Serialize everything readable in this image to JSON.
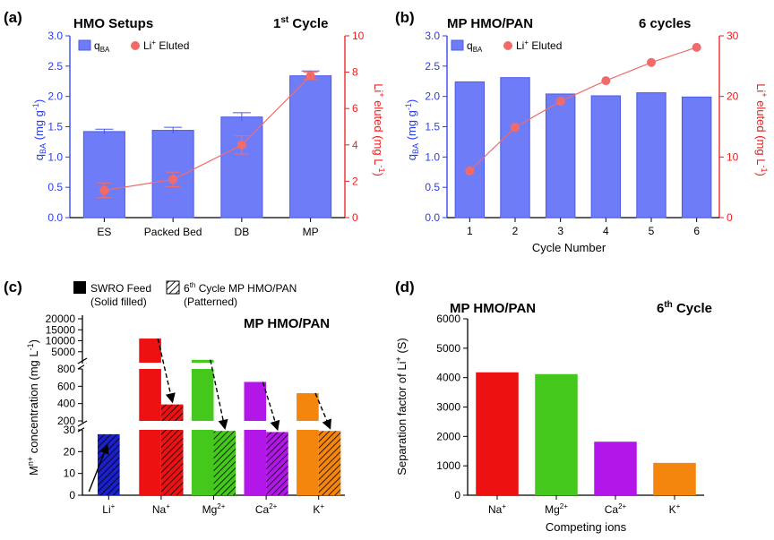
{
  "colors": {
    "bar_blue": "#6f7cf7",
    "bar_blue_edge": "#4b5be8",
    "li_red": "#f26b6b",
    "axis_blue": "#2a3cf0",
    "axis_red": "#ec1c1c",
    "na": "#ee1111",
    "mg": "#44c81c",
    "ca": "#b316e8",
    "k": "#f4860d",
    "li": "#1b20c8"
  },
  "chart_data": [
    {
      "panel": "(a)",
      "type": "bar",
      "title": "HMO Setups",
      "title_right": "1",
      "title_right_sup": "st",
      "title_right_rest": " Cycle",
      "categories": [
        "ES",
        "Packed Bed",
        "DB",
        "MP"
      ],
      "ylabel_main": "q",
      "ylabel_sub": "BA",
      "ylabel_rest": " (mg g",
      "ylabel_sup": "-1",
      "ylabel_end": ")",
      "y2label_main": "Li",
      "y2label_sup": "+",
      "y2label_rest": " eluted (mg L",
      "y2label_sup2": "-1",
      "y2label_end": ")",
      "ylim": [
        0,
        3.0
      ],
      "yticks": [
        "0.0",
        "0.5",
        "1.0",
        "1.5",
        "2.0",
        "2.5",
        "3.0"
      ],
      "y2lim": [
        0,
        10
      ],
      "y2ticks": [
        "0",
        "2",
        "4",
        "6",
        "8",
        "10"
      ],
      "bars": [
        {
          "value": 1.42,
          "err": 0.04
        },
        {
          "value": 1.44,
          "err": 0.05
        },
        {
          "value": 1.66,
          "err": 0.07
        },
        {
          "value": 2.34,
          "err": 0.08
        }
      ],
      "line": [
        {
          "value": 1.5,
          "err": 0.4
        },
        {
          "value": 2.1,
          "err": 0.4
        },
        {
          "value": 4.0,
          "err": 0.5
        },
        {
          "value": 7.8,
          "err": 0.2
        }
      ],
      "legend": {
        "bar_main": "q",
        "bar_sub": "BA",
        "line_main": "Li",
        "line_sup": "+",
        "line_rest": " Eluted"
      }
    },
    {
      "panel": "(b)",
      "type": "bar",
      "title": "MP HMO/PAN",
      "title_right": "6 cycles",
      "categories": [
        "1",
        "2",
        "3",
        "4",
        "5",
        "6"
      ],
      "xlabel": "Cycle Number",
      "ylabel_main": "q",
      "ylabel_sub": "BA",
      "ylabel_rest": " (mg g",
      "ylabel_sup": "-1",
      "ylabel_end": ")",
      "y2label_main": "Li",
      "y2label_sup": "+",
      "y2label_rest": " eluted (mg L",
      "y2label_sup2": "-1",
      "y2label_end": ")",
      "ylim": [
        0,
        3.0
      ],
      "yticks": [
        "0.0",
        "0.5",
        "1.0",
        "1.5",
        "2.0",
        "2.5",
        "3.0"
      ],
      "y2lim": [
        0,
        30
      ],
      "y2ticks": [
        "0",
        "10",
        "20",
        "30"
      ],
      "bars": [
        2.24,
        2.31,
        2.04,
        2.01,
        2.06,
        1.99
      ],
      "line": [
        7.7,
        14.9,
        19.2,
        22.6,
        25.6,
        28.1
      ],
      "legend": {
        "bar_main": "q",
        "bar_sub": "BA",
        "line_main": "Li",
        "line_sup": "+",
        "line_rest": " Eluted"
      }
    },
    {
      "panel": "(c)",
      "type": "bar",
      "title": "MP HMO/PAN",
      "categories": [
        {
          "base": "Li",
          "sup": "+"
        },
        {
          "base": "Na",
          "sup": "+"
        },
        {
          "base": "Mg",
          "sup": "2+"
        },
        {
          "base": "Ca",
          "sup": "2+"
        },
        {
          "base": "K",
          "sup": "+"
        }
      ],
      "ylabel_main": "M",
      "ylabel_sup": "n+",
      "ylabel_rest": " concentration (mg L",
      "ylabel_sup2": "-1",
      "ylabel_end": ")",
      "y_segments": [
        {
          "range": [
            0,
            30
          ],
          "ticks": [
            "0",
            "10",
            "20",
            "30"
          ]
        },
        {
          "range": [
            200,
            800
          ],
          "ticks": [
            "200",
            "400",
            "600",
            "800"
          ]
        },
        {
          "range": [
            0,
            20000
          ],
          "ticks": [
            "5000",
            "10000",
            "15000",
            "20000"
          ]
        }
      ],
      "series": [
        {
          "name": "SWRO Feed",
          "name_note": "(Solid filled)",
          "values": [
            null,
            11000,
            1300,
            650,
            520
          ]
        },
        {
          "name_pre": "6",
          "name_sup": "th",
          "name": " Cycle MP HMO/PAN",
          "name_note": "(Patterned)",
          "values": [
            28,
            390,
            29.5,
            29,
            29.5
          ]
        }
      ]
    },
    {
      "panel": "(d)",
      "type": "bar",
      "title": "MP HMO/PAN",
      "title_right": "6",
      "title_right_sup": "th",
      "title_right_rest": " Cycle",
      "categories": [
        {
          "base": "Na",
          "sup": "+"
        },
        {
          "base": "Mg",
          "sup": "2+"
        },
        {
          "base": "Ca",
          "sup": "2+"
        },
        {
          "base": "K",
          "sup": "+"
        }
      ],
      "xlabel": "Competing ions",
      "ylabel_main": "Separation factor of Li",
      "ylabel_sup": "+",
      "ylabel_rest": " (S)",
      "ylim": [
        0,
        6000
      ],
      "yticks": [
        "0",
        "1000",
        "2000",
        "3000",
        "4000",
        "5000",
        "6000"
      ],
      "values": [
        4180,
        4120,
        1820,
        1100
      ]
    }
  ]
}
